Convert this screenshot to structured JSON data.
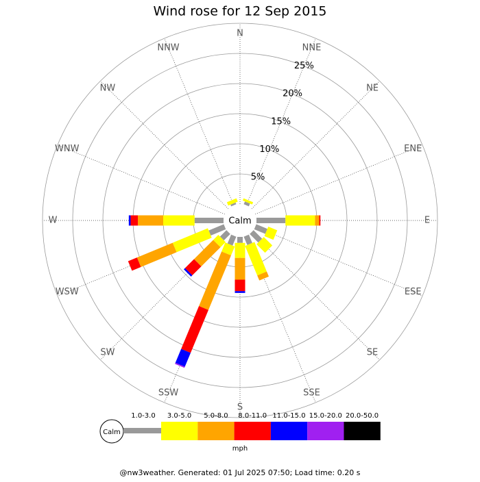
{
  "chart_data": {
    "type": "windrose",
    "title": "Wind rose for 12 Sep 2015",
    "categories": [
      "N",
      "NNE",
      "NE",
      "ENE",
      "E",
      "ESE",
      "SE",
      "SSE",
      "S",
      "SSW",
      "SW",
      "WSW",
      "W",
      "WNW",
      "NW",
      "NNW"
    ],
    "calm_label": "Calm",
    "series": [
      {
        "name": "1.0-3.0",
        "color": "#999999",
        "values": [
          0,
          0.5,
          0,
          0,
          4.8,
          2.0,
          2.0,
          1.5,
          1.0,
          1.6,
          1.5,
          2.7,
          4.8,
          0,
          0,
          0.3
        ]
      },
      {
        "name": "3.0-5.0",
        "color": "#ffff00",
        "values": [
          0,
          0.4,
          0,
          0,
          4.9,
          1.6,
          2.0,
          5.3,
          2.5,
          1.6,
          1.2,
          6.3,
          5.2,
          0,
          0,
          0.6
        ]
      },
      {
        "name": "5.0-8.0",
        "color": "#ffa500",
        "values": [
          0,
          0,
          0,
          0,
          0.7,
          0,
          0,
          0.9,
          3.6,
          9.8,
          4.5,
          6.4,
          4.2,
          0,
          0,
          0
        ]
      },
      {
        "name": "8.0-11.0",
        "color": "#ff0000",
        "values": [
          0,
          0,
          0,
          0,
          0.2,
          0,
          0,
          0,
          1.9,
          7.7,
          2.1,
          1.6,
          1.2,
          0,
          0,
          0
        ]
      },
      {
        "name": "11.0-15.0",
        "color": "#0000ff",
        "values": [
          0,
          0,
          0,
          0,
          0,
          0,
          0,
          0,
          0.3,
          2.5,
          0.3,
          0,
          0.3,
          0,
          0,
          0
        ]
      },
      {
        "name": "15.0-20.0",
        "color": "#a020f0",
        "values": [
          0,
          0,
          0,
          0,
          0,
          0,
          0,
          0,
          0,
          0.2,
          0,
          0,
          0,
          0,
          0,
          0
        ]
      },
      {
        "name": "20.0-50.0",
        "color": "#000000",
        "values": [
          0,
          0,
          0,
          0,
          0,
          0,
          0,
          0,
          0,
          0,
          0,
          0,
          0,
          0,
          0,
          0
        ]
      }
    ],
    "ylim": [
      0,
      30
    ],
    "yticks": [
      {
        "value": 5,
        "label": "5%"
      },
      {
        "value": 10,
        "label": "10%"
      },
      {
        "value": 15,
        "label": "15%"
      },
      {
        "value": 20,
        "label": "20%"
      },
      {
        "value": 25,
        "label": "25%"
      }
    ],
    "unit": "mph",
    "footer": "@nw3weather. Generated: 01 Jul 2025 07:50; Load time: 0.20 s"
  }
}
